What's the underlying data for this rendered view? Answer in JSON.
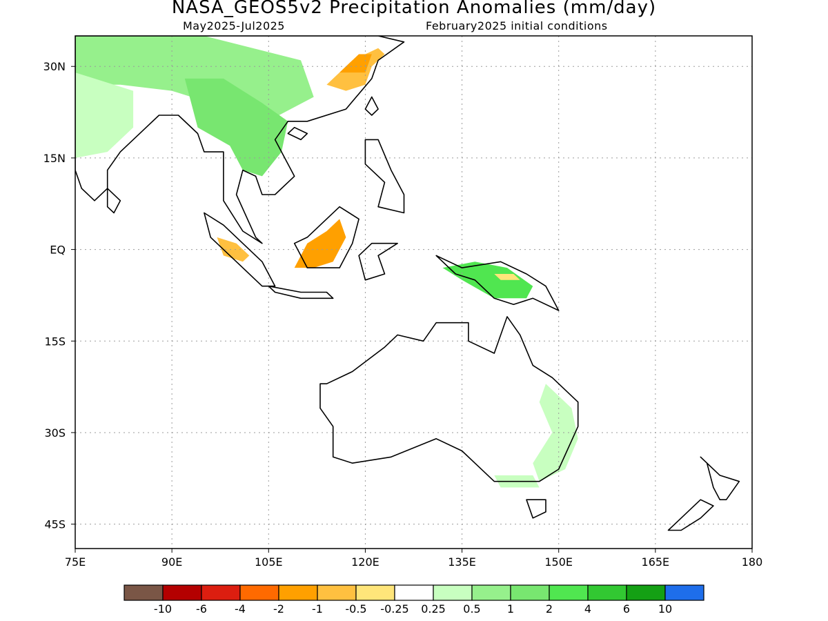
{
  "title": "NASA_GEOS5v2 Precipitation Anomalies (mm/day)",
  "subtitle_left": "May2025-Jul2025",
  "subtitle_right": "February2025 initial conditions",
  "map": {
    "lon_range": [
      75,
      180
    ],
    "lat_range": [
      -49,
      35
    ],
    "grid": true,
    "land_outline": "#000000",
    "ocean": "#ffffff"
  },
  "axes": {
    "y_ticks": [
      {
        "value": 30,
        "label": "30N"
      },
      {
        "value": 15,
        "label": "15N"
      },
      {
        "value": 0,
        "label": "EQ"
      },
      {
        "value": -15,
        "label": "15S"
      },
      {
        "value": -30,
        "label": "30S"
      },
      {
        "value": -45,
        "label": "45S"
      }
    ],
    "x_ticks": [
      {
        "value": 75,
        "label": "75E"
      },
      {
        "value": 90,
        "label": "90E"
      },
      {
        "value": 105,
        "label": "105E"
      },
      {
        "value": 120,
        "label": "120E"
      },
      {
        "value": 135,
        "label": "135E"
      },
      {
        "value": 150,
        "label": "150E"
      },
      {
        "value": 165,
        "label": "165E"
      },
      {
        "value": 180,
        "label": "180"
      }
    ]
  },
  "colorbar": {
    "colors": [
      "#7a5646",
      "#b40000",
      "#dc1e10",
      "#ff6a00",
      "#ffa000",
      "#ffc040",
      "#ffe57a",
      "#ffffff",
      "#c8ffc0",
      "#96f08c",
      "#78e670",
      "#50e650",
      "#32c832",
      "#14a014",
      "#1e6eeb"
    ],
    "labels": [
      "-10",
      "-6",
      "-4",
      "-2",
      "-1",
      "-0.5",
      "-0.25",
      "0.25",
      "0.5",
      "1",
      "2",
      "4",
      "6",
      "10"
    ]
  },
  "anomaly_regions": [
    {
      "name": "china-east",
      "color": "#ffc040",
      "lonlat": [
        [
          114,
          27
        ],
        [
          118,
          31
        ],
        [
          122,
          33
        ],
        [
          123,
          32
        ],
        [
          121,
          30
        ],
        [
          120,
          27
        ],
        [
          117,
          26
        ]
      ]
    },
    {
      "name": "china-east-core",
      "color": "#ffa000",
      "lonlat": [
        [
          116,
          29
        ],
        [
          119,
          32
        ],
        [
          121,
          32
        ],
        [
          120,
          29
        ]
      ]
    },
    {
      "name": "south-asia-north",
      "color": "#96f08c",
      "lonlat": [
        [
          75,
          35
        ],
        [
          95,
          35
        ],
        [
          110,
          31
        ],
        [
          112,
          25
        ],
        [
          103,
          20
        ],
        [
          96,
          24
        ],
        [
          90,
          26
        ],
        [
          82,
          27
        ],
        [
          75,
          27
        ]
      ]
    },
    {
      "name": "indochina",
      "color": "#78e670",
      "lonlat": [
        [
          92,
          28
        ],
        [
          98,
          28
        ],
        [
          104,
          24
        ],
        [
          108,
          21
        ],
        [
          107,
          16
        ],
        [
          104,
          12
        ],
        [
          101,
          13
        ],
        [
          99,
          17
        ],
        [
          94,
          20
        ]
      ]
    },
    {
      "name": "india-west",
      "color": "#c8ffc0",
      "lonlat": [
        [
          75,
          29
        ],
        [
          84,
          26
        ],
        [
          84,
          20
        ],
        [
          80,
          16
        ],
        [
          75,
          15
        ]
      ]
    },
    {
      "name": "borneo",
      "color": "#ffa000",
      "lonlat": [
        [
          109,
          -3
        ],
        [
          111,
          1
        ],
        [
          114,
          3
        ],
        [
          116,
          5
        ],
        [
          117,
          2
        ],
        [
          115,
          -2
        ],
        [
          112,
          -3
        ]
      ]
    },
    {
      "name": "sumatra-equator",
      "color": "#ffc040",
      "lonlat": [
        [
          97,
          2
        ],
        [
          100,
          1
        ],
        [
          102,
          -1
        ],
        [
          101,
          -2
        ],
        [
          98,
          -1
        ]
      ]
    },
    {
      "name": "new-guinea",
      "color": "#50e650",
      "lonlat": [
        [
          132,
          -3
        ],
        [
          137,
          -2
        ],
        [
          142,
          -3
        ],
        [
          146,
          -6
        ],
        [
          145,
          -8
        ],
        [
          140,
          -8
        ],
        [
          135,
          -5
        ]
      ]
    },
    {
      "name": "new-guinea-dry",
      "color": "#ffe57a",
      "lonlat": [
        [
          140,
          -4
        ],
        [
          143,
          -4
        ],
        [
          144,
          -5
        ],
        [
          141,
          -5
        ]
      ]
    },
    {
      "name": "australia-east",
      "color": "#c8ffc0",
      "lonlat": [
        [
          148,
          -22
        ],
        [
          152,
          -26
        ],
        [
          153,
          -31
        ],
        [
          151,
          -36
        ],
        [
          147,
          -38
        ],
        [
          146,
          -35
        ],
        [
          149,
          -30
        ],
        [
          147,
          -25
        ]
      ]
    },
    {
      "name": "australia-southeast",
      "color": "#c8ffc0",
      "lonlat": [
        [
          140,
          -37
        ],
        [
          146,
          -37
        ],
        [
          147,
          -39
        ],
        [
          141,
          -39
        ]
      ]
    }
  ],
  "landmasses": [
    {
      "name": "asia-mainland",
      "lonlat": [
        [
          75,
          35
        ],
        [
          122,
          35
        ],
        [
          126,
          34
        ],
        [
          122,
          31
        ],
        [
          121,
          28
        ],
        [
          117,
          23
        ],
        [
          111,
          21
        ],
        [
          108,
          21
        ],
        [
          106,
          18
        ],
        [
          109,
          12
        ],
        [
          106,
          9
        ],
        [
          104,
          9
        ],
        [
          103,
          12
        ],
        [
          101,
          13
        ],
        [
          100,
          9
        ],
        [
          103,
          2
        ],
        [
          104,
          1
        ],
        [
          101,
          3
        ],
        [
          98,
          8
        ],
        [
          98,
          16
        ],
        [
          95,
          16
        ],
        [
          94,
          19
        ],
        [
          91,
          22
        ],
        [
          88,
          22
        ],
        [
          86,
          20
        ],
        [
          82,
          16
        ],
        [
          80,
          13
        ],
        [
          80,
          10
        ],
        [
          78,
          8
        ],
        [
          76,
          10
        ],
        [
          75,
          13
        ]
      ]
    },
    {
      "name": "sri-lanka",
      "lonlat": [
        [
          80,
          10
        ],
        [
          82,
          8
        ],
        [
          81,
          6
        ],
        [
          80,
          7
        ]
      ]
    },
    {
      "name": "taiwan",
      "lonlat": [
        [
          121,
          25
        ],
        [
          122,
          23
        ],
        [
          121,
          22
        ],
        [
          120,
          23
        ]
      ]
    },
    {
      "name": "hainan",
      "lonlat": [
        [
          109,
          20
        ],
        [
          111,
          19
        ],
        [
          110,
          18
        ],
        [
          108,
          19
        ]
      ]
    },
    {
      "name": "philippines",
      "lonlat": [
        [
          120,
          18
        ],
        [
          122,
          18
        ],
        [
          124,
          13
        ],
        [
          126,
          9
        ],
        [
          126,
          6
        ],
        [
          122,
          7
        ],
        [
          123,
          11
        ],
        [
          120,
          14
        ]
      ]
    },
    {
      "name": "sumatra",
      "lonlat": [
        [
          95,
          6
        ],
        [
          98,
          4
        ],
        [
          104,
          -2
        ],
        [
          106,
          -6
        ],
        [
          104,
          -6
        ],
        [
          100,
          -2
        ],
        [
          96,
          2
        ]
      ]
    },
    {
      "name": "java",
      "lonlat": [
        [
          105,
          -6
        ],
        [
          110,
          -7
        ],
        [
          114,
          -7
        ],
        [
          115,
          -8
        ],
        [
          110,
          -8
        ],
        [
          106,
          -7
        ]
      ]
    },
    {
      "name": "borneo-island",
      "lonlat": [
        [
          109,
          1
        ],
        [
          111,
          2
        ],
        [
          116,
          7
        ],
        [
          119,
          5
        ],
        [
          118,
          1
        ],
        [
          116,
          -3
        ],
        [
          111,
          -3
        ],
        [
          110,
          -1
        ]
      ]
    },
    {
      "name": "sulawesi",
      "lonlat": [
        [
          119,
          -1
        ],
        [
          121,
          1
        ],
        [
          125,
          1
        ],
        [
          122,
          -1
        ],
        [
          123,
          -4
        ],
        [
          120,
          -5
        ]
      ]
    },
    {
      "name": "new-guinea-island",
      "lonlat": [
        [
          131,
          -1
        ],
        [
          135,
          -3
        ],
        [
          141,
          -2
        ],
        [
          145,
          -4
        ],
        [
          148,
          -6
        ],
        [
          150,
          -10
        ],
        [
          146,
          -8
        ],
        [
          143,
          -9
        ],
        [
          140,
          -8
        ],
        [
          137,
          -5
        ],
        [
          134,
          -4
        ]
      ]
    },
    {
      "name": "australia",
      "lonlat": [
        [
          114,
          -22
        ],
        [
          118,
          -20
        ],
        [
          123,
          -16
        ],
        [
          125,
          -14
        ],
        [
          129,
          -15
        ],
        [
          131,
          -12
        ],
        [
          136,
          -12
        ],
        [
          136,
          -15
        ],
        [
          140,
          -17
        ],
        [
          142,
          -11
        ],
        [
          144,
          -14
        ],
        [
          146,
          -19
        ],
        [
          149,
          -21
        ],
        [
          153,
          -25
        ],
        [
          153,
          -29
        ],
        [
          150,
          -36
        ],
        [
          147,
          -38
        ],
        [
          144,
          -38
        ],
        [
          140,
          -38
        ],
        [
          137,
          -35
        ],
        [
          135,
          -33
        ],
        [
          131,
          -31
        ],
        [
          124,
          -34
        ],
        [
          118,
          -35
        ],
        [
          115,
          -34
        ],
        [
          115,
          -29
        ],
        [
          113,
          -26
        ],
        [
          113,
          -22
        ]
      ]
    },
    {
      "name": "tasmania",
      "lonlat": [
        [
          145,
          -41
        ],
        [
          148,
          -41
        ],
        [
          148,
          -43
        ],
        [
          146,
          -44
        ]
      ]
    },
    {
      "name": "new-zealand-north",
      "lonlat": [
        [
          172,
          -34
        ],
        [
          175,
          -37
        ],
        [
          178,
          -38
        ],
        [
          176,
          -41
        ],
        [
          175,
          -41
        ],
        [
          174,
          -39
        ],
        [
          173,
          -35
        ]
      ]
    },
    {
      "name": "new-zealand-south",
      "lonlat": [
        [
          172,
          -41
        ],
        [
          174,
          -42
        ],
        [
          172,
          -44
        ],
        [
          169,
          -46
        ],
        [
          167,
          -46
        ],
        [
          169,
          -44
        ],
        [
          171,
          -42
        ]
      ]
    }
  ]
}
